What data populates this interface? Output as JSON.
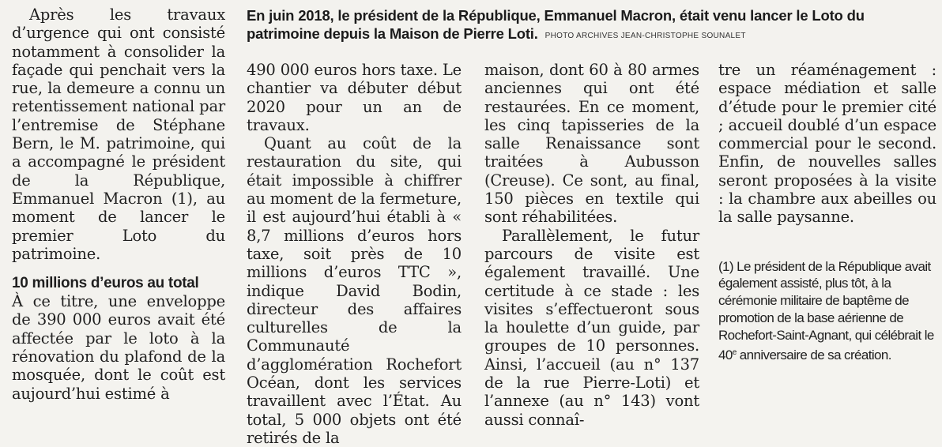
{
  "photo_caption": {
    "text": "En juin 2018, le président de la République, Emmanuel Macron, était venu lancer le Loto du patrimoine depuis la Maison de Pierre Loti.",
    "credit": "PHOTO ARCHIVES JEAN-CHRISTOPHE SOUNALET"
  },
  "column1": {
    "paragraph1": "Après les travaux d’urgence qui ont consisté notamment à consolider la façade qui penchait vers la rue, la demeure a connu un retentissement national par l’entremise de Stéphane Bern, le M. patrimoine, qui a accompagné le président de la République, Emmanuel Macron (1), au moment de lancer le premier Loto du patrimoine.",
    "subheading": "10 millions d’euros au total",
    "paragraph2": "À ce titre, une enveloppe de 390 000 euros avait été affectée par le loto à la rénovation du plafond de la mosquée, dont le coût est aujourd’hui estimé à"
  },
  "column2": {
    "paragraph1": "490 000 euros hors taxe. Le chantier va débuter début 2020 pour un an de travaux.",
    "paragraph2": "Quant au coût de la restauration du site, qui était impossible à chiffrer au moment de la fermeture, il est aujourd’hui établi à « 8,7 millions d’euros hors taxe, soit près de 10 millions d’euros TTC », indique David Bodin, directeur des affaires culturelles de la Communauté d’agglomération Rochefort Océan, dont les services travaillent avec l’État. Au total, 5 000 objets ont été retirés de la"
  },
  "column3": {
    "paragraph1": "maison, dont 60 à 80 armes anciennes qui ont été restaurées. En ce moment, les cinq tapisseries de la salle Renaissance sont traitées à Aubusson (Creuse). Ce sont, au final, 150 pièces en textile qui sont réhabilitées.",
    "paragraph2": "Parallèlement, le futur parcours de visite est également travaillé. Une certitude à ce stade : les visites s’effectueront sous la houlette d’un guide, par groupes de 10 personnes. Ainsi, l’accueil (au n° 137 de la rue Pierre-Loti) et l’annexe (au n° 143) vont aussi connaî-"
  },
  "column4": {
    "paragraph1": "tre un réaménagement : espace médiation et salle d’étude pour le premier cité ; accueil doublé d’un espace commercial pour le second. Enfin, de nouvelles salles seront proposées à la visite : la chambre aux abeilles ou la salle paysanne.",
    "footnote_main": "(1) Le président de la République avait également assisté, plus tôt, à la cérémonie militaire de baptême de promotion de la base aérienne de Rochefort-Saint-Agnant, qui célébrait le 40",
    "footnote_sup": "e",
    "footnote_end": " anniversaire de sa création."
  }
}
